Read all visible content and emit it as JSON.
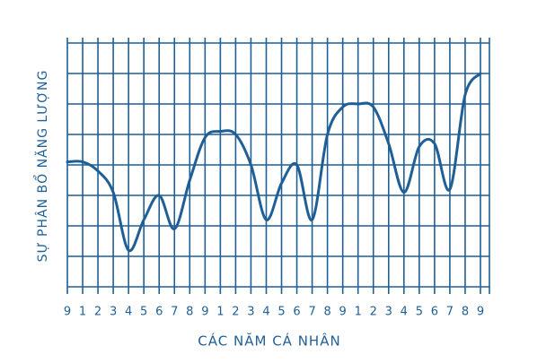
{
  "chart_data": {
    "type": "line",
    "x_label": "CÁC NĂM CÁ NHÂN",
    "y_label": "SỰ PHÂN BỔ NĂNG LƯỢNG",
    "categories": [
      "9",
      "1",
      "2",
      "3",
      "4",
      "5",
      "6",
      "7",
      "8",
      "9",
      "1",
      "2",
      "3",
      "4",
      "5",
      "6",
      "7",
      "8",
      "9",
      "1",
      "2",
      "3",
      "4",
      "5",
      "6",
      "7",
      "8",
      "9"
    ],
    "series": [
      {
        "color": "#1f5f95",
        "values": [
          4.1,
          4.1,
          3.8,
          3.1,
          1.2,
          2.2,
          3.0,
          1.9,
          3.5,
          4.9,
          5.1,
          5.0,
          4.0,
          2.2,
          3.4,
          4.0,
          2.2,
          5.0,
          5.9,
          6.0,
          5.9,
          4.7,
          3.1,
          4.6,
          4.7,
          3.2,
          6.3,
          7.0
        ]
      }
    ],
    "ylim": [
      0,
      8
    ],
    "grid": true
  }
}
